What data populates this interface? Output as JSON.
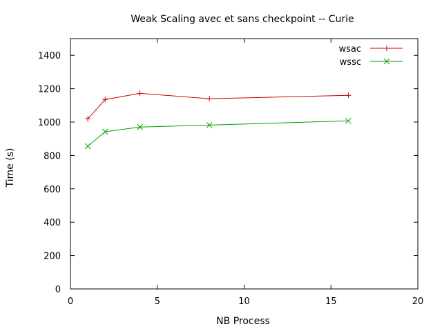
{
  "chart_data": {
    "type": "line",
    "title": "Weak Scaling avec et sans checkpoint -- Curie",
    "xlabel": "NB Process",
    "ylabel": "Time (s)",
    "xlim": [
      0,
      20
    ],
    "ylim": [
      0,
      1500
    ],
    "xticks": [
      0,
      5,
      10,
      15,
      20
    ],
    "yticks": [
      0,
      200,
      400,
      600,
      800,
      1000,
      1200,
      1400
    ],
    "grid": false,
    "legend_position": "top-right",
    "series": [
      {
        "name": "wsac",
        "color": "#cc0000",
        "marker": "plus",
        "x": [
          1,
          2,
          4,
          8,
          16
        ],
        "y": [
          1020,
          1135,
          1172,
          1140,
          1160
        ]
      },
      {
        "name": "wssc",
        "color": "#00a000",
        "marker": "cross",
        "x": [
          1,
          2,
          4,
          8,
          16
        ],
        "y": [
          855,
          942,
          970,
          982,
          1007
        ]
      }
    ]
  }
}
